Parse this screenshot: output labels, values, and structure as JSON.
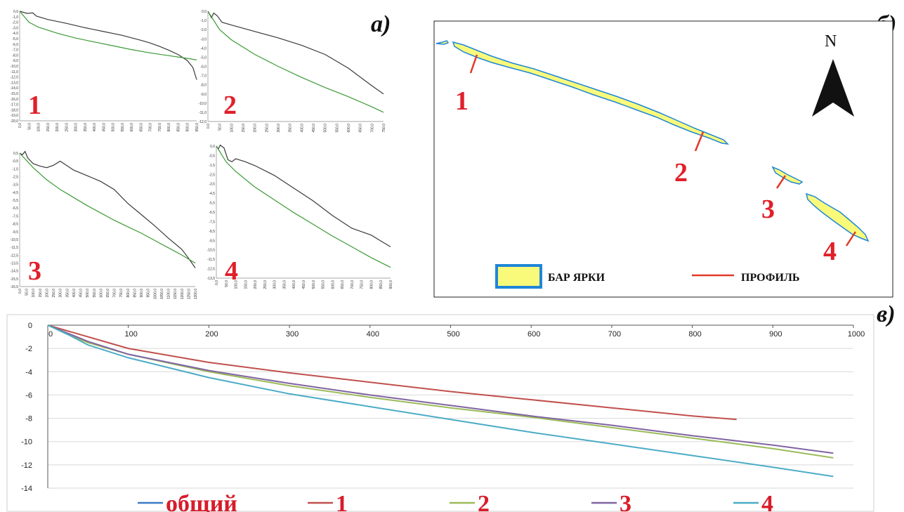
{
  "panel_labels": {
    "a": "а)",
    "b": "б)",
    "c": "в)"
  },
  "colors": {
    "profile_line": "#3a3a3a",
    "fit_line": "#3c9a35",
    "label_red": "#e0202a",
    "bar_fill": "#fafa7a",
    "bar_outline": "#1f86d8",
    "profile_mark": "#e03a2a",
    "grid": "#d9d9d9"
  },
  "map": {
    "north": "N",
    "legend_bar": "БАР ЯРКИ",
    "legend_profile": "ПРОФИЛЬ",
    "profile_labels": [
      "1",
      "2",
      "3",
      "4"
    ]
  },
  "chart_data": [
    {
      "panel": "а)",
      "label": "1",
      "type": "line",
      "ylim": [
        -20,
        0
      ],
      "xlim": [
        0,
        950
      ],
      "yticks": [
        "0,0",
        "-1,0",
        "-2,0",
        "-3,0",
        "-4,0",
        "-5,0",
        "-6,0",
        "-7,0",
        "-8,0",
        "-9,0",
        "-10,0",
        "-11,0",
        "-12,0",
        "-13,0",
        "-14,0",
        "-15,0",
        "-16,0",
        "-17,0",
        "-18,0",
        "-19,0",
        "-20,0"
      ],
      "xticks": [
        "0,0",
        "50,0",
        "100,0",
        "150,0",
        "200,0",
        "250,0",
        "300,0",
        "350,0",
        "400,0",
        "450,0",
        "500,0",
        "550,0",
        "600,0",
        "650,0",
        "700,0",
        "750,0",
        "800,0",
        "850,0",
        "900,0",
        "950,0"
      ],
      "series": [
        {
          "role": "profile",
          "x": [
            0,
            40,
            70,
            90,
            150,
            250,
            350,
            450,
            550,
            650,
            700,
            750,
            800,
            850,
            900,
            930,
            950
          ],
          "y": [
            0,
            -0.4,
            -0.3,
            -0.9,
            -1.5,
            -2.2,
            -3.0,
            -3.7,
            -4.4,
            -5.3,
            -5.8,
            -6.4,
            -7.1,
            -7.9,
            -9.0,
            -10.3,
            -12.5
          ]
        },
        {
          "role": "fit",
          "x": [
            0,
            50,
            100,
            200,
            300,
            400,
            500,
            600,
            700,
            800,
            900,
            950
          ],
          "y": [
            0,
            -2.0,
            -2.9,
            -4.0,
            -4.9,
            -5.6,
            -6.3,
            -7.0,
            -7.6,
            -8.1,
            -8.6,
            -8.9
          ]
        }
      ]
    },
    {
      "panel": "а)",
      "label": "2",
      "type": "line",
      "ylim": [
        -12,
        0
      ],
      "xlim": [
        0,
        750
      ],
      "yticks": [
        "0,0",
        "-1,0",
        "-2,0",
        "-3,0",
        "-4,0",
        "-5,0",
        "-6,0",
        "-7,0",
        "-8,0",
        "-9,0",
        "-10,0",
        "-11,0",
        "-12,0"
      ],
      "xticks": [
        "0,0",
        "50,0",
        "100,0",
        "150,0",
        "200,0",
        "250,0",
        "300,0",
        "350,0",
        "400,0",
        "450,0",
        "500,0",
        "550,0",
        "600,0",
        "650,0",
        "700,0",
        "750,0"
      ],
      "series": [
        {
          "role": "profile",
          "x": [
            0,
            15,
            25,
            40,
            60,
            100,
            200,
            300,
            400,
            500,
            600,
            700,
            750
          ],
          "y": [
            0,
            -0.7,
            -0.2,
            -0.5,
            -1.2,
            -1.5,
            -2.2,
            -2.9,
            -3.7,
            -4.7,
            -6.2,
            -8.1,
            -9.0
          ]
        },
        {
          "role": "fit",
          "x": [
            0,
            50,
            100,
            200,
            300,
            400,
            500,
            600,
            700,
            750
          ],
          "y": [
            0,
            -2.0,
            -3.1,
            -4.7,
            -6.0,
            -7.2,
            -8.3,
            -9.3,
            -10.4,
            -11.0
          ]
        }
      ]
    },
    {
      "panel": "а)",
      "label": "3",
      "type": "line",
      "ylim": [
        -16.5,
        0
      ],
      "xlim": [
        0,
        1300
      ],
      "yticks": [
        "0,5",
        "-0,5",
        "-1,5",
        "-2,5",
        "-3,5",
        "-4,5",
        "-5,5",
        "-6,5",
        "-7,5",
        "-8,5",
        "-9,5",
        "-10,5",
        "-11,5",
        "-12,5",
        "-13,5",
        "-14,5",
        "-15,5",
        "-16,5"
      ],
      "xticks": [
        "0,0",
        "50,0",
        "100,0",
        "150,0",
        "200,0",
        "250,0",
        "300,0",
        "350,0",
        "400,0",
        "450,0",
        "500,0",
        "550,0",
        "600,0",
        "650,0",
        "700,0",
        "750,0",
        "800,0",
        "850,0",
        "900,0",
        "950,0",
        "1000,0",
        "1050,0",
        "1100,0",
        "1150,0",
        "1200,0",
        "1250,0",
        "1300,0"
      ],
      "series": [
        {
          "role": "profile",
          "x": [
            0,
            20,
            40,
            60,
            100,
            150,
            200,
            250,
            300,
            400,
            500,
            600,
            700,
            800,
            900,
            1000,
            1100,
            1200,
            1250,
            1300
          ],
          "y": [
            0,
            -0.2,
            0.2,
            -0.6,
            -1.3,
            -1.6,
            -1.8,
            -1.5,
            -1.0,
            -2.1,
            -2.8,
            -3.5,
            -4.5,
            -6.2,
            -7.6,
            -9.0,
            -10.5,
            -11.9,
            -13.0,
            -14.2
          ]
        },
        {
          "role": "fit",
          "x": [
            0,
            100,
            200,
            300,
            400,
            500,
            600,
            700,
            800,
            900,
            1000,
            1100,
            1200,
            1300
          ],
          "y": [
            0,
            -1.8,
            -3.3,
            -4.5,
            -5.5,
            -6.5,
            -7.4,
            -8.3,
            -9.1,
            -9.9,
            -10.8,
            -11.7,
            -12.6,
            -13.6
          ]
        }
      ]
    },
    {
      "panel": "а)",
      "label": "4",
      "type": "line",
      "ylim": [
        -13.5,
        0
      ],
      "xlim": [
        0,
        900
      ],
      "yticks": [
        "0,0",
        "-0,5",
        "-1,5",
        "-2,5",
        "-3,5",
        "-4,5",
        "-5,5",
        "-6,5",
        "-7,5",
        "-8,5",
        "-9,5",
        "-10,5",
        "-11,5",
        "-12,5",
        "-13,5"
      ],
      "xticks": [
        "0,0",
        "50,0",
        "100,0",
        "150,0",
        "200,0",
        "250,0",
        "300,0",
        "350,0",
        "400,0",
        "450,0",
        "500,0",
        "550,0",
        "600,0",
        "650,0",
        "700,0",
        "750,0",
        "800,0",
        "850,0",
        "900,0"
      ],
      "series": [
        {
          "role": "profile",
          "x": [
            0,
            10,
            20,
            40,
            60,
            80,
            100,
            150,
            200,
            300,
            400,
            500,
            600,
            700,
            800,
            850,
            900
          ],
          "y": [
            0,
            -0.3,
            0.1,
            -0.2,
            -1.4,
            -1.6,
            -1.3,
            -1.6,
            -2.0,
            -3.0,
            -4.3,
            -5.6,
            -7.1,
            -8.4,
            -9.1,
            -9.7,
            -10.3
          ]
        },
        {
          "role": "fit",
          "x": [
            0,
            50,
            100,
            200,
            300,
            400,
            500,
            600,
            700,
            800,
            900
          ],
          "y": [
            0,
            -1.6,
            -2.6,
            -4.2,
            -5.5,
            -6.8,
            -8.0,
            -9.2,
            -10.3,
            -11.4,
            -12.4
          ]
        }
      ]
    },
    {
      "panel": "в)",
      "type": "line",
      "xlim": [
        0,
        1000
      ],
      "ylim": [
        -14,
        0
      ],
      "xticks": [
        "0",
        "100",
        "200",
        "300",
        "400",
        "500",
        "600",
        "700",
        "800",
        "900",
        "1000"
      ],
      "yticks": [
        "0",
        "-2",
        "-4",
        "-6",
        "-8",
        "-10",
        "-12",
        "-14"
      ],
      "grid": true,
      "legend_position": "bottom",
      "series": [
        {
          "name": "общий",
          "color": "#3a7bc8",
          "x": [
            0,
            975
          ],
          "y": [
            0,
            0
          ],
          "hidden": true
        },
        {
          "name": "1",
          "color": "#c0504d",
          "x": [
            0,
            25,
            50,
            100,
            200,
            300,
            400,
            500,
            600,
            700,
            800,
            855
          ],
          "y": [
            0,
            -0.5,
            -1.0,
            -2.0,
            -3.2,
            -4.1,
            -4.9,
            -5.7,
            -6.4,
            -7.1,
            -7.8,
            -8.1
          ]
        },
        {
          "name": "2",
          "color": "#9bbb59",
          "x": [
            0,
            25,
            50,
            100,
            200,
            300,
            400,
            500,
            600,
            700,
            800,
            900,
            975
          ],
          "y": [
            0,
            -0.8,
            -1.5,
            -2.5,
            -4.0,
            -5.2,
            -6.2,
            -7.1,
            -7.9,
            -8.8,
            -9.7,
            -10.6,
            -11.4
          ]
        },
        {
          "name": "3",
          "color": "#8064a2",
          "x": [
            0,
            25,
            50,
            100,
            200,
            300,
            400,
            500,
            600,
            700,
            800,
            900,
            975
          ],
          "y": [
            0,
            -0.7,
            -1.4,
            -2.5,
            -3.9,
            -5.0,
            -6.0,
            -6.9,
            -7.8,
            -8.6,
            -9.5,
            -10.3,
            -11.0
          ]
        },
        {
          "name": "4",
          "color": "#4bacc6",
          "x": [
            0,
            25,
            50,
            100,
            200,
            300,
            400,
            500,
            600,
            700,
            800,
            900,
            975
          ],
          "y": [
            0,
            -0.8,
            -1.7,
            -2.8,
            -4.5,
            -5.9,
            -7.0,
            -8.1,
            -9.2,
            -10.2,
            -11.2,
            -12.2,
            -13.0
          ]
        }
      ]
    }
  ]
}
